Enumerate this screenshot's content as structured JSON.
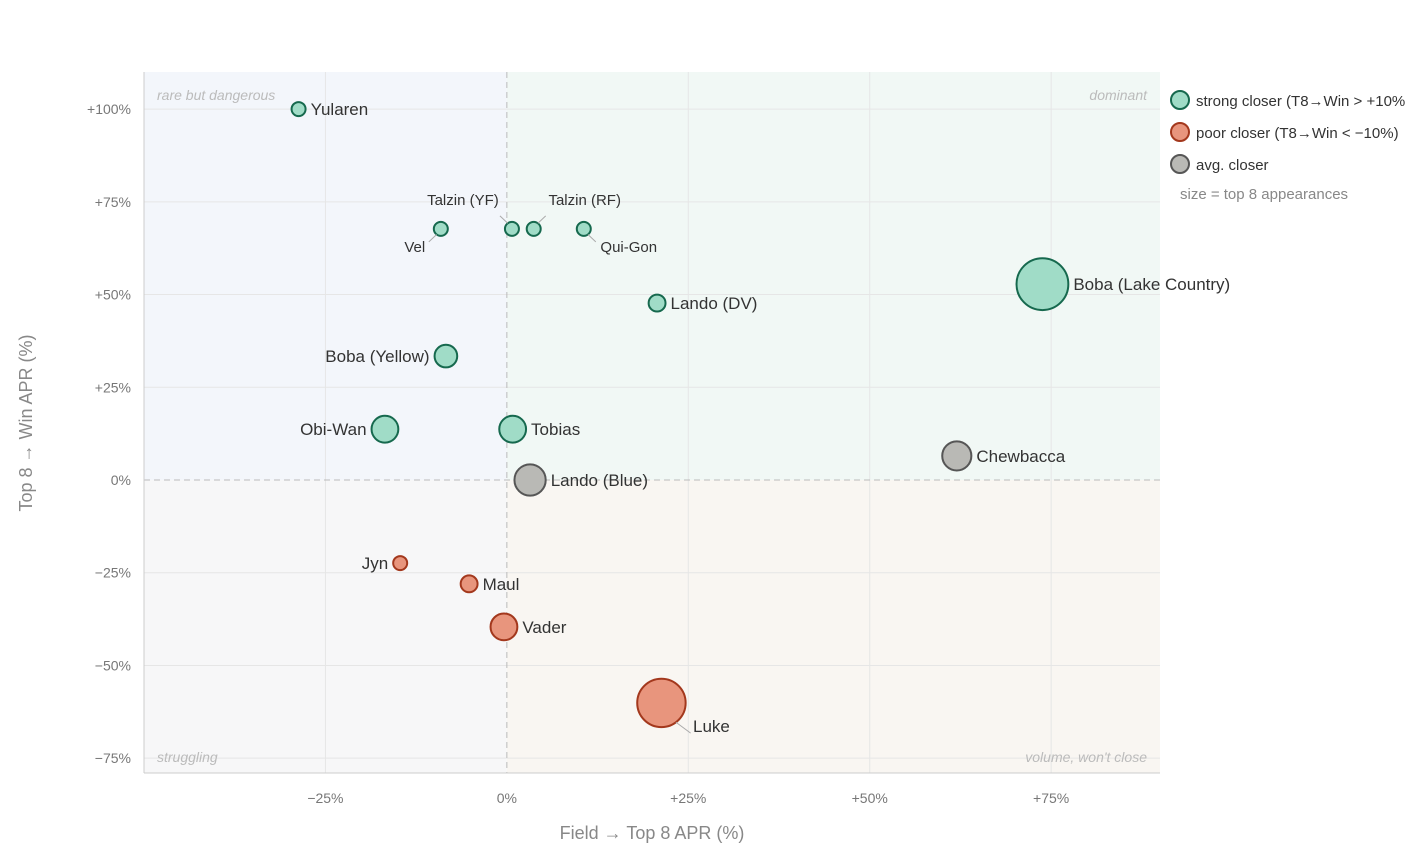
{
  "chart_data": {
    "type": "scatter",
    "title": "",
    "xlabel": "Field → Top 8 APR (%)",
    "ylabel": "Top 8 → Win APR (%)",
    "xlim": [
      -50,
      90
    ],
    "ylim": [
      -79,
      110
    ],
    "xticks": [
      -25,
      0,
      25,
      50,
      75
    ],
    "xtick_labels": [
      "−25%",
      "0%",
      "+25%",
      "+50%",
      "+75%"
    ],
    "yticks": [
      100,
      75,
      50,
      25,
      0,
      -25,
      -50,
      -75
    ],
    "ytick_labels": [
      "+100%",
      "+75%",
      "+50%",
      "+25%",
      "0%",
      "−25%",
      "−50%",
      "−75%"
    ],
    "grid": true,
    "quadrant_labels": {
      "top_left": "rare but dangerous",
      "top_right": "dominant",
      "bottom_left": "struggling",
      "bottom_right": "volume, won't close"
    },
    "legend": {
      "placement": "right-top",
      "entries": [
        {
          "key": "strong",
          "label": "strong closer (T8→Win > +10%"
        },
        {
          "key": "poor",
          "label": "poor closer (T8→Win < −10%)"
        },
        {
          "key": "avg",
          "label": "avg. closer"
        }
      ],
      "note": "size = top 8 appearances"
    },
    "colors": {
      "strong": {
        "fill": "#a0dcc7",
        "stroke": "#16694e"
      },
      "poor": {
        "fill": "#e8957d",
        "stroke": "#a3381d"
      },
      "avg": {
        "fill": "#b9b9b5",
        "stroke": "#565656"
      }
    },
    "points": [
      {
        "name": "Yularen",
        "x": -28.7,
        "y": 100,
        "appearances": 1,
        "group": "strong"
      },
      {
        "name": "Vel",
        "x": -9.1,
        "y": 67.7,
        "appearances": 1,
        "group": "strong"
      },
      {
        "name": "Talzin (YF)",
        "x": 0.7,
        "y": 67.7,
        "appearances": 1,
        "group": "strong"
      },
      {
        "name": "Talzin (RF)",
        "x": 3.7,
        "y": 67.7,
        "appearances": 1,
        "group": "strong"
      },
      {
        "name": "Qui-Gon",
        "x": 10.6,
        "y": 67.7,
        "appearances": 1,
        "group": "strong"
      },
      {
        "name": "Lando (DV)",
        "x": 20.7,
        "y": 47.7,
        "appearances": 2,
        "group": "strong"
      },
      {
        "name": "Boba (Lake Country)",
        "x": 73.8,
        "y": 52.8,
        "appearances": 41,
        "group": "strong"
      },
      {
        "name": "Boba (Yellow)",
        "x": -8.4,
        "y": 33.4,
        "appearances": 5,
        "group": "strong"
      },
      {
        "name": "Obi-Wan",
        "x": -16.8,
        "y": 13.7,
        "appearances": 8,
        "group": "strong"
      },
      {
        "name": "Tobias",
        "x": 0.8,
        "y": 13.7,
        "appearances": 8,
        "group": "strong"
      },
      {
        "name": "Chewbacca",
        "x": 62.0,
        "y": 6.5,
        "appearances": 10,
        "group": "avg"
      },
      {
        "name": "Lando (Blue)",
        "x": 3.2,
        "y": 0,
        "appearances": 12,
        "group": "avg"
      },
      {
        "name": "Jyn",
        "x": -14.7,
        "y": -22.4,
        "appearances": 1,
        "group": "poor"
      },
      {
        "name": "Maul",
        "x": -5.2,
        "y": -28.0,
        "appearances": 2,
        "group": "poor"
      },
      {
        "name": "Vader",
        "x": -0.4,
        "y": -39.6,
        "appearances": 8,
        "group": "poor"
      },
      {
        "name": "Luke",
        "x": 21.3,
        "y": -60.1,
        "appearances": 35,
        "group": "poor"
      }
    ]
  }
}
